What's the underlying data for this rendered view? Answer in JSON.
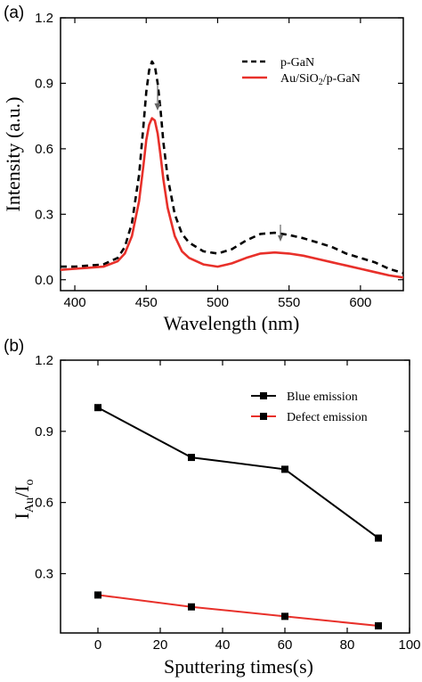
{
  "chart_data": [
    {
      "type": "line",
      "panel_label": "(a)",
      "xlabel": "Wavelength (nm)",
      "ylabel": "Intensity (a.u.)",
      "xlim": [
        390,
        630
      ],
      "ylim": [
        -0.05,
        1.2
      ],
      "xticks": [
        400,
        450,
        500,
        550,
        600
      ],
      "yticks": [
        0.0,
        0.3,
        0.6,
        0.9,
        1.2
      ],
      "ytick_labels": [
        "0.0",
        "0.3",
        "0.6",
        "0.9",
        "1.2"
      ],
      "legend_position": "top-right",
      "series": [
        {
          "name": "p-GaN",
          "style": "dashed",
          "color": "#000000",
          "x": [
            390,
            400,
            410,
            420,
            430,
            435,
            440,
            445,
            448,
            450,
            452,
            454,
            456,
            458,
            460,
            462,
            465,
            470,
            475,
            480,
            490,
            500,
            510,
            520,
            530,
            540,
            550,
            560,
            570,
            580,
            590,
            600,
            610,
            620,
            630
          ],
          "y": [
            0.06,
            0.06,
            0.065,
            0.07,
            0.1,
            0.15,
            0.26,
            0.48,
            0.7,
            0.86,
            0.96,
            1.0,
            0.98,
            0.9,
            0.78,
            0.63,
            0.47,
            0.3,
            0.21,
            0.17,
            0.13,
            0.12,
            0.14,
            0.18,
            0.21,
            0.215,
            0.205,
            0.19,
            0.17,
            0.15,
            0.12,
            0.1,
            0.08,
            0.05,
            0.03
          ]
        },
        {
          "name": "Au/SiO2/p-GaN",
          "style": "solid",
          "color": "#e8302a",
          "x": [
            390,
            400,
            410,
            420,
            430,
            435,
            440,
            445,
            448,
            450,
            452,
            454,
            456,
            458,
            460,
            462,
            465,
            470,
            475,
            480,
            490,
            500,
            510,
            520,
            530,
            540,
            550,
            560,
            570,
            580,
            590,
            600,
            610,
            620,
            630
          ],
          "y": [
            0.045,
            0.05,
            0.055,
            0.06,
            0.085,
            0.12,
            0.2,
            0.36,
            0.52,
            0.64,
            0.71,
            0.74,
            0.73,
            0.67,
            0.57,
            0.46,
            0.33,
            0.2,
            0.13,
            0.1,
            0.07,
            0.06,
            0.075,
            0.1,
            0.12,
            0.125,
            0.12,
            0.11,
            0.095,
            0.08,
            0.065,
            0.05,
            0.035,
            0.02,
            0.01
          ]
        }
      ]
    },
    {
      "type": "line",
      "panel_label": "(b)",
      "xlabel": "Sputtering times(s)",
      "ylabel": "I_Au/I_o",
      "ylabel_main": "I",
      "ylabel_sub1": "Au",
      "ylabel_mid": "/I",
      "ylabel_sub2": "o",
      "xlim": [
        -12,
        100
      ],
      "ylim": [
        0.05,
        1.2
      ],
      "xticks": [
        0,
        20,
        40,
        60,
        80,
        100
      ],
      "xtick_labels": [
        "0",
        "20",
        "40",
        "60",
        "80",
        "100"
      ],
      "yticks": [
        0.3,
        0.6,
        0.9,
        1.2
      ],
      "ytick_labels": [
        "0.3",
        "0.6",
        "0.9",
        "1.2"
      ],
      "legend_position": "top-right",
      "markers": "square",
      "series": [
        {
          "name": "Blue emission",
          "color": "#000000",
          "x": [
            0,
            30,
            60,
            90
          ],
          "y": [
            1.0,
            0.79,
            0.74,
            0.45
          ]
        },
        {
          "name": "Defect emission",
          "color": "#e8302a",
          "x": [
            0,
            30,
            60,
            90
          ],
          "y": [
            0.21,
            0.16,
            0.12,
            0.08
          ]
        }
      ]
    }
  ],
  "legend_a": {
    "item0": "p-GaN",
    "item1_pre": "Au/SiO",
    "item1_sub": "2",
    "item1_post": "/p-GaN"
  }
}
